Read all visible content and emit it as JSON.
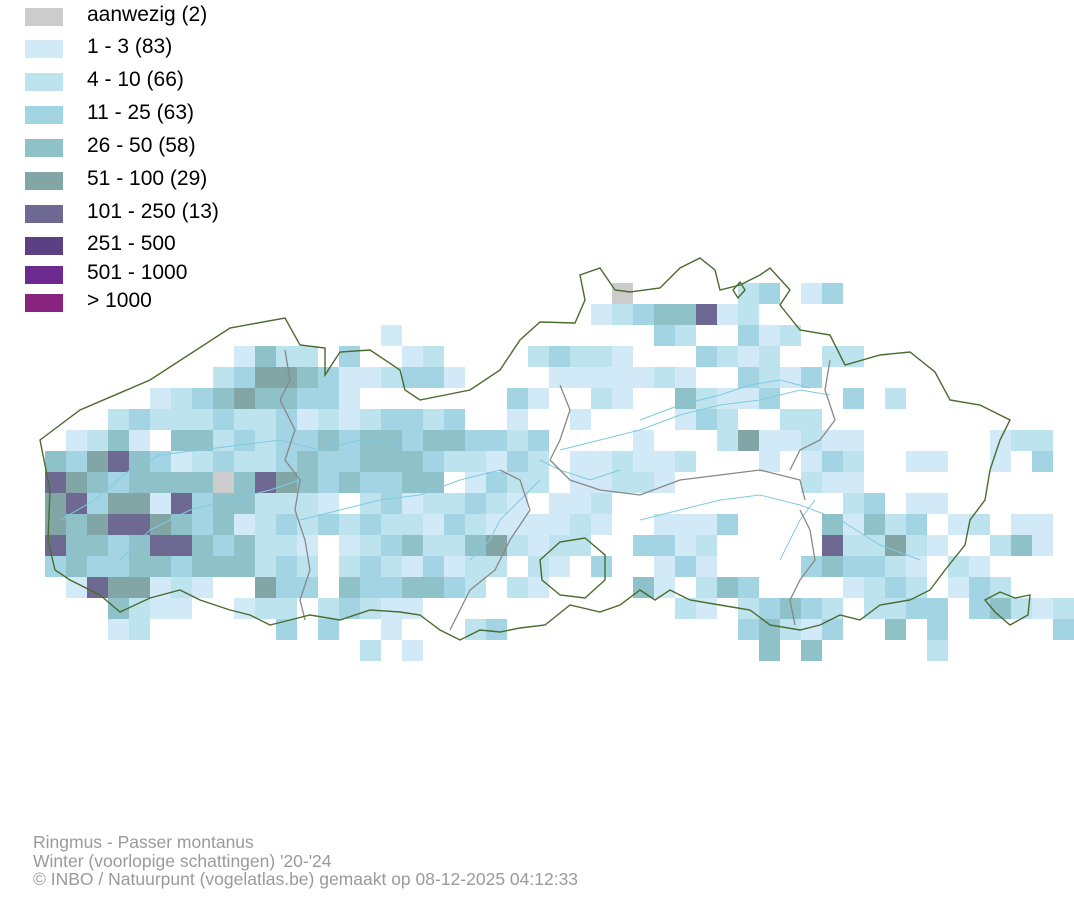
{
  "legend": {
    "items": [
      {
        "label": "aanwezig (2)",
        "color": "#cccccc"
      },
      {
        "label": "1 - 3 (83)",
        "color": "#d2eaf8"
      },
      {
        "label": "4 - 10 (66)",
        "color": "#bde3ef"
      },
      {
        "label": "11 - 25 (63)",
        "color": "#a2d4e3"
      },
      {
        "label": "26 - 50 (58)",
        "color": "#8fc1c8"
      },
      {
        "label": "51 - 100 (29)",
        "color": "#82a6a6"
      },
      {
        "label": "101 - 250 (13)",
        "color": "#6e6993"
      },
      {
        "label": "251 - 500",
        "color": "#5b4184"
      },
      {
        "label": "501 - 1000",
        "color": "#6c2a91"
      },
      {
        "label": "> 1000",
        "color": "#8a237f"
      }
    ]
  },
  "map": {
    "border_color": "#4a6b2e",
    "province_border_color": "#888888",
    "river_color": "#7ecbe0"
  },
  "footer": {
    "species": "Ringmus - Passer montanus",
    "period": "Winter (voorlopige schattingen) '20-'24",
    "credit": "© INBO / Natuurpunt (vogelatlas.be) gemaakt op 08-12-2025 04:12:33"
  }
}
